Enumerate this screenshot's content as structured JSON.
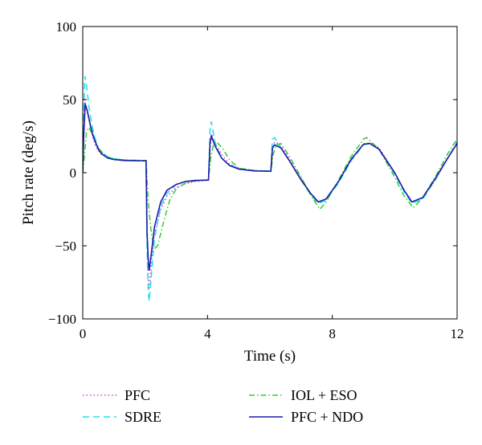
{
  "chart_data": {
    "type": "line",
    "xlabel": "Time (s)",
    "ylabel": "Pitch rate (deg/s)",
    "xlim": [
      0,
      12
    ],
    "ylim": [
      -100,
      100
    ],
    "xticks": [
      0,
      4,
      8,
      12
    ],
    "yticks": [
      -100,
      -50,
      0,
      50,
      100
    ],
    "grid": false,
    "legend_position": "bottom",
    "series": [
      {
        "name": "PFC",
        "color": "#cc44cc",
        "style": "dotted",
        "points": [
          [
            0,
            0
          ],
          [
            0.03,
            25
          ],
          [
            0.06,
            50
          ],
          [
            0.1,
            46
          ],
          [
            0.2,
            36
          ],
          [
            0.3,
            26
          ],
          [
            0.4,
            19
          ],
          [
            0.5,
            15
          ],
          [
            0.6,
            12.5
          ],
          [
            0.8,
            10
          ],
          [
            1.0,
            9
          ],
          [
            1.3,
            8.5
          ],
          [
            1.6,
            8.3
          ],
          [
            2.03,
            8.2
          ],
          [
            2.06,
            -40
          ],
          [
            2.1,
            -72
          ],
          [
            2.13,
            -80
          ],
          [
            2.2,
            -62
          ],
          [
            2.3,
            -42
          ],
          [
            2.5,
            -25
          ],
          [
            2.7,
            -16
          ],
          [
            3.0,
            -10
          ],
          [
            3.3,
            -7.5
          ],
          [
            3.6,
            -6
          ],
          [
            4.03,
            -5.2
          ],
          [
            4.1,
            22
          ],
          [
            4.15,
            25
          ],
          [
            4.3,
            18
          ],
          [
            4.5,
            11
          ],
          [
            4.7,
            6
          ],
          [
            5.0,
            3
          ],
          [
            5.5,
            1.5
          ],
          [
            6.03,
            1
          ],
          [
            6.1,
            20
          ],
          [
            6.2,
            21
          ],
          [
            6.4,
            17
          ],
          [
            6.6,
            10
          ],
          [
            7.0,
            -4
          ],
          [
            7.3,
            -14
          ],
          [
            7.55,
            -20
          ],
          [
            7.8,
            -18
          ],
          [
            8.2,
            -6
          ],
          [
            8.6,
            9
          ],
          [
            9.0,
            19.5
          ],
          [
            9.2,
            20.5
          ],
          [
            9.5,
            17
          ],
          [
            10.0,
            0
          ],
          [
            10.3,
            -12
          ],
          [
            10.55,
            -20
          ],
          [
            10.9,
            -17
          ],
          [
            11.3,
            -5
          ],
          [
            11.7,
            10
          ],
          [
            12,
            20
          ]
        ]
      },
      {
        "name": "SDRE",
        "color": "#22ddee",
        "style": "dashed",
        "points": [
          [
            0,
            0
          ],
          [
            0.03,
            40
          ],
          [
            0.07,
            66
          ],
          [
            0.12,
            60
          ],
          [
            0.2,
            45
          ],
          [
            0.3,
            32
          ],
          [
            0.4,
            23
          ],
          [
            0.5,
            17
          ],
          [
            0.6,
            14
          ],
          [
            0.8,
            11
          ],
          [
            1.0,
            9.5
          ],
          [
            1.3,
            8.8
          ],
          [
            1.6,
            8.5
          ],
          [
            2.03,
            8.3
          ],
          [
            2.06,
            -50
          ],
          [
            2.1,
            -82
          ],
          [
            2.13,
            -88
          ],
          [
            2.2,
            -70
          ],
          [
            2.3,
            -45
          ],
          [
            2.5,
            -23
          ],
          [
            2.7,
            -14
          ],
          [
            3.0,
            -8
          ],
          [
            3.3,
            -6
          ],
          [
            3.6,
            -5.2
          ],
          [
            4.03,
            -5
          ],
          [
            4.08,
            30
          ],
          [
            4.12,
            35
          ],
          [
            4.25,
            20
          ],
          [
            4.45,
            10
          ],
          [
            4.7,
            5
          ],
          [
            5.0,
            3
          ],
          [
            5.5,
            1.5
          ],
          [
            6.03,
            1
          ],
          [
            6.08,
            23
          ],
          [
            6.15,
            24
          ],
          [
            6.35,
            17
          ],
          [
            6.6,
            9
          ],
          [
            7.0,
            -5
          ],
          [
            7.3,
            -15
          ],
          [
            7.55,
            -21
          ],
          [
            7.8,
            -19
          ],
          [
            8.2,
            -7
          ],
          [
            8.6,
            8
          ],
          [
            9.0,
            19
          ],
          [
            9.2,
            20
          ],
          [
            9.5,
            16
          ],
          [
            10.0,
            -1
          ],
          [
            10.3,
            -13
          ],
          [
            10.55,
            -21
          ],
          [
            10.9,
            -18
          ],
          [
            11.3,
            -5
          ],
          [
            11.7,
            10
          ],
          [
            12,
            21
          ]
        ]
      },
      {
        "name": "IOL + ESO",
        "color": "#33cc33",
        "style": "dashdot",
        "points": [
          [
            0,
            0
          ],
          [
            0.05,
            10
          ],
          [
            0.12,
            28
          ],
          [
            0.2,
            31
          ],
          [
            0.35,
            24
          ],
          [
            0.5,
            17
          ],
          [
            0.7,
            12
          ],
          [
            0.9,
            10
          ],
          [
            1.2,
            9
          ],
          [
            1.6,
            8.5
          ],
          [
            2.03,
            8.3
          ],
          [
            2.1,
            -20
          ],
          [
            2.2,
            -42
          ],
          [
            2.3,
            -52
          ],
          [
            2.4,
            -50
          ],
          [
            2.6,
            -33
          ],
          [
            2.8,
            -18
          ],
          [
            3.0,
            -11
          ],
          [
            3.3,
            -7
          ],
          [
            3.6,
            -5.5
          ],
          [
            4.03,
            -5
          ],
          [
            4.1,
            10
          ],
          [
            4.2,
            20
          ],
          [
            4.3,
            21
          ],
          [
            4.5,
            16
          ],
          [
            4.7,
            9
          ],
          [
            5.0,
            3
          ],
          [
            5.5,
            1.5
          ],
          [
            6.03,
            1
          ],
          [
            6.1,
            12
          ],
          [
            6.2,
            19
          ],
          [
            6.35,
            20
          ],
          [
            6.6,
            12
          ],
          [
            7.0,
            -3
          ],
          [
            7.3,
            -15
          ],
          [
            7.6,
            -25
          ],
          [
            7.8,
            -20
          ],
          [
            8.2,
            -5
          ],
          [
            8.6,
            11
          ],
          [
            9.0,
            23
          ],
          [
            9.1,
            24
          ],
          [
            9.5,
            16
          ],
          [
            10.0,
            -3
          ],
          [
            10.3,
            -16
          ],
          [
            10.6,
            -24
          ],
          [
            10.9,
            -17
          ],
          [
            11.3,
            -3
          ],
          [
            11.7,
            13
          ],
          [
            12,
            23
          ]
        ]
      },
      {
        "name": "PFC + NDO",
        "color": "#1a1aa8",
        "style": "solid",
        "points": [
          [
            0,
            0
          ],
          [
            0.03,
            25
          ],
          [
            0.08,
            47
          ],
          [
            0.15,
            42
          ],
          [
            0.25,
            32
          ],
          [
            0.35,
            24
          ],
          [
            0.5,
            16
          ],
          [
            0.6,
            13
          ],
          [
            0.8,
            10
          ],
          [
            1.0,
            9
          ],
          [
            1.3,
            8.4
          ],
          [
            1.6,
            8.2
          ],
          [
            2.03,
            8.1
          ],
          [
            2.06,
            -40
          ],
          [
            2.1,
            -60
          ],
          [
            2.13,
            -67
          ],
          [
            2.2,
            -55
          ],
          [
            2.3,
            -37
          ],
          [
            2.5,
            -20
          ],
          [
            2.7,
            -12
          ],
          [
            3.0,
            -8
          ],
          [
            3.3,
            -6
          ],
          [
            3.6,
            -5.3
          ],
          [
            4.03,
            -5
          ],
          [
            4.08,
            20
          ],
          [
            4.12,
            25
          ],
          [
            4.25,
            18
          ],
          [
            4.45,
            10
          ],
          [
            4.7,
            5
          ],
          [
            5.0,
            2.5
          ],
          [
            5.5,
            1.2
          ],
          [
            6.03,
            1
          ],
          [
            6.08,
            17
          ],
          [
            6.15,
            19
          ],
          [
            6.35,
            17
          ],
          [
            6.6,
            9
          ],
          [
            7.0,
            -5
          ],
          [
            7.3,
            -14
          ],
          [
            7.55,
            -20
          ],
          [
            7.8,
            -18
          ],
          [
            8.2,
            -6
          ],
          [
            8.6,
            9
          ],
          [
            9.0,
            19.5
          ],
          [
            9.2,
            20
          ],
          [
            9.5,
            16
          ],
          [
            10.0,
            0
          ],
          [
            10.3,
            -12
          ],
          [
            10.55,
            -20
          ],
          [
            10.9,
            -17
          ],
          [
            11.3,
            -4
          ],
          [
            11.7,
            10
          ],
          [
            12,
            20
          ]
        ]
      }
    ]
  }
}
